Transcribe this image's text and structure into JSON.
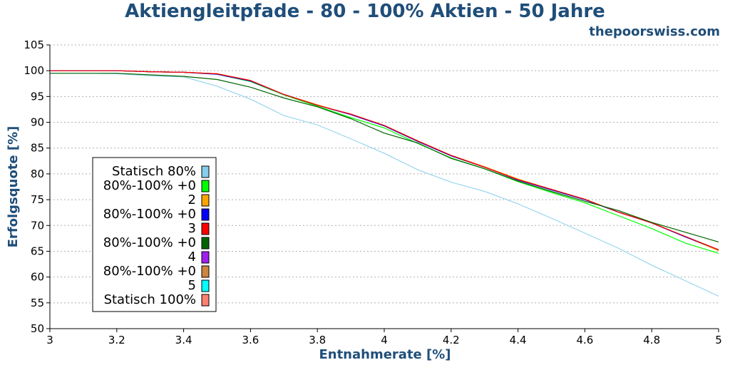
{
  "title": "Aktiengleitpfade - 80 - 100% Aktien - 50 Jahre",
  "source": "thepoorswiss.com",
  "chart_data": {
    "type": "line",
    "title": "Aktiengleitpfade - 80 - 100% Aktien - 50 Jahre",
    "xlabel": "Entnahmerate [%]",
    "ylabel": "Erfolgsquote [%]",
    "xlim": [
      3,
      5
    ],
    "ylim": [
      50,
      105
    ],
    "xticks": [
      "3",
      "3.2",
      "3.4",
      "3.6",
      "3.8",
      "4",
      "4.2",
      "4.4",
      "4.6",
      "4.8",
      "5"
    ],
    "yticks": [
      "50",
      "55",
      "60",
      "65",
      "70",
      "75",
      "80",
      "85",
      "90",
      "95",
      "100",
      "105"
    ],
    "grid": "horizontal dotted",
    "legend_placement": "lower-left",
    "legend_entries": [
      [
        "Statisch 80%"
      ],
      [
        "80%-100% +0",
        "2"
      ],
      [
        "80%-100% +0",
        "3"
      ],
      [
        "80%-100% +0",
        "4"
      ],
      [
        "80%-100% +0",
        "5"
      ],
      [
        "Statisch 100%"
      ]
    ],
    "x": [
      3.0,
      3.1,
      3.2,
      3.3,
      3.4,
      3.5,
      3.6,
      3.7,
      3.8,
      3.9,
      4.0,
      4.1,
      4.2,
      4.3,
      4.4,
      4.5,
      4.6,
      4.7,
      4.8,
      4.9,
      5.0
    ],
    "series": [
      {
        "name": "Statisch 80%",
        "color": "#87ceeb",
        "values": [
          99.5,
          99.5,
          99.4,
          99.0,
          98.8,
          97.0,
          94.5,
          91.3,
          89.5,
          86.8,
          84.0,
          80.8,
          78.4,
          76.6,
          74.2,
          71.4,
          68.5,
          65.6,
          62.3,
          59.3,
          56.3
        ]
      },
      {
        "name": "80%-100% +02",
        "color": "#00ff00",
        "values": [
          100.0,
          100.0,
          100.0,
          99.8,
          99.7,
          99.3,
          97.9,
          95.3,
          93.1,
          90.9,
          88.9,
          85.9,
          83.1,
          81.0,
          78.5,
          76.4,
          74.4,
          71.9,
          69.4,
          66.6,
          64.6
        ]
      },
      {
        "name": "80%-100% +03",
        "color": "#ffa500",
        "values": [
          100.0,
          100.0,
          100.0,
          99.8,
          99.7,
          99.4,
          98.1,
          95.4,
          93.4,
          91.5,
          89.4,
          86.4,
          83.6,
          81.4,
          79.0,
          77.0,
          75.1,
          72.6,
          70.6,
          67.8,
          65.1
        ]
      },
      {
        "name": "80%-100% +04",
        "color": "#0000ff",
        "values": [
          100.0,
          100.0,
          100.0,
          99.8,
          99.7,
          99.3,
          98.0,
          95.4,
          93.3,
          91.5,
          89.3,
          86.3,
          83.5,
          81.3,
          78.8,
          76.9,
          75.0,
          72.6,
          70.5,
          67.8,
          65.3
        ]
      },
      {
        "name": "80%-100% +05",
        "color": "#ff0000",
        "values": [
          100.0,
          100.0,
          100.0,
          99.8,
          99.7,
          99.4,
          98.1,
          95.4,
          93.3,
          91.6,
          89.4,
          86.4,
          83.6,
          81.3,
          78.9,
          77.0,
          75.1,
          72.6,
          70.5,
          67.9,
          65.3
        ]
      },
      {
        "name": "Statisch 100%",
        "color": "#006400",
        "values": [
          99.5,
          99.5,
          99.5,
          99.2,
          98.9,
          98.3,
          96.8,
          94.7,
          93.0,
          90.7,
          87.9,
          86.0,
          83.0,
          81.0,
          78.6,
          76.6,
          74.7,
          72.9,
          70.6,
          68.7,
          66.8
        ]
      },
      {
        "name": "legend-4",
        "color": "#a020f0",
        "values": [
          100.0,
          100.0,
          100.0,
          99.8,
          99.7,
          99.4,
          98.0,
          95.4,
          93.3,
          91.5,
          89.3,
          86.3,
          83.5,
          81.3,
          78.9,
          76.9,
          75.0,
          72.6,
          70.5,
          67.8,
          65.3
        ]
      },
      {
        "name": "legend-5",
        "color": "#cd853f",
        "values": [
          100.0,
          100.0,
          100.0,
          99.8,
          99.7,
          99.4,
          98.0,
          95.4,
          93.3,
          91.5,
          89.3,
          86.3,
          83.5,
          81.3,
          78.9,
          76.9,
          75.0,
          72.6,
          70.5,
          67.8,
          65.3
        ]
      },
      {
        "name": "legend-6",
        "color": "#00ffff",
        "values": [
          100.0,
          100.0,
          100.0,
          99.8,
          99.7,
          99.4,
          98.0,
          95.4,
          93.3,
          91.5,
          89.3,
          86.3,
          83.5,
          81.3,
          78.9,
          76.9,
          75.0,
          72.6,
          70.5,
          67.8,
          65.3
        ]
      },
      {
        "name": "legend-7",
        "color": "#fa8072",
        "values": [
          100.0,
          100.0,
          100.0,
          99.8,
          99.7,
          99.4,
          98.0,
          95.4,
          93.3,
          91.5,
          89.3,
          86.3,
          83.5,
          81.3,
          78.9,
          76.9,
          75.0,
          72.6,
          70.5,
          67.8,
          65.3
        ]
      }
    ],
    "legend_swatches": [
      "#87ceeb",
      "#00ff00",
      "#ffa500",
      "#0000ff",
      "#ff0000",
      "#006400",
      "#a020f0",
      "#cd853f",
      "#00ffff",
      "#fa8072"
    ],
    "legend_lines": [
      "Statisch 80%",
      "80%-100% +0",
      "2",
      "80%-100% +0",
      "3",
      "80%-100% +0",
      "4",
      "80%-100% +0",
      "5",
      "Statisch 100%"
    ]
  }
}
